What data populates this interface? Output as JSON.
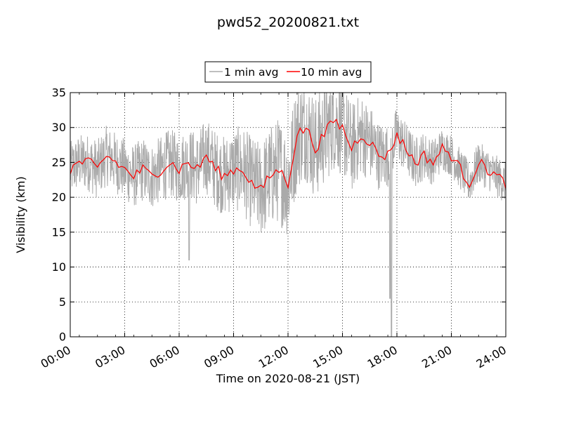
{
  "chart_data": {
    "type": "line",
    "title": "pwd52_20200821.txt",
    "xlabel": "Time on 2020-08-21 (JST)",
    "ylabel": "Visibility (km)",
    "x_unit": "hours",
    "xlim": [
      0,
      24
    ],
    "ylim": [
      0,
      35
    ],
    "x_ticks": [
      0,
      3,
      6,
      9,
      12,
      15,
      18,
      21,
      24
    ],
    "x_tick_labels": [
      "00:00",
      "03:00",
      "06:00",
      "09:00",
      "12:00",
      "15:00",
      "18:00",
      "21:00",
      "24:00"
    ],
    "y_ticks": [
      0,
      5,
      10,
      15,
      20,
      25,
      30,
      35
    ],
    "y_tick_labels": [
      "0",
      "5",
      "10",
      "15",
      "20",
      "25",
      "30",
      "35"
    ],
    "grid": true,
    "legend_position": "top-center",
    "series": [
      {
        "name": "1 min avg",
        "color": "#aaaaaa",
        "noise_amplitude": [
          [
            0,
            4
          ],
          [
            6,
            5
          ],
          [
            9,
            6
          ],
          [
            12,
            8
          ],
          [
            15,
            7
          ],
          [
            18,
            4
          ],
          [
            21,
            3
          ],
          [
            24,
            3
          ]
        ],
        "dips": [
          {
            "x": 6.55,
            "y": 11
          },
          {
            "x": 17.62,
            "y": 5.5
          },
          {
            "x": 17.7,
            "y": 0
          }
        ]
      },
      {
        "name": "10 min avg",
        "color": "#ff0000",
        "x": [
          0,
          0.5,
          1,
          1.5,
          2,
          2.5,
          3,
          3.5,
          4,
          4.5,
          5,
          5.5,
          6,
          6.5,
          7,
          7.5,
          8,
          8.5,
          9,
          9.5,
          10,
          10.5,
          11,
          11.5,
          12,
          12.5,
          13,
          13.5,
          14,
          14.5,
          15,
          15.5,
          16,
          16.5,
          17,
          17.5,
          18,
          18.5,
          19,
          19.5,
          20,
          20.5,
          21,
          21.5,
          22,
          22.5,
          23,
          23.5,
          24
        ],
        "y": [
          24,
          25,
          25,
          24,
          26,
          25,
          24,
          23,
          24,
          23,
          24,
          25,
          24,
          25,
          24,
          26,
          24,
          23,
          24,
          24,
          22,
          21,
          23,
          24,
          22,
          29,
          30,
          27,
          29,
          31,
          30,
          27,
          29,
          28,
          26,
          26,
          29,
          27,
          25,
          26,
          25,
          27,
          26,
          24,
          22,
          25,
          24,
          23,
          22
        ]
      }
    ]
  }
}
